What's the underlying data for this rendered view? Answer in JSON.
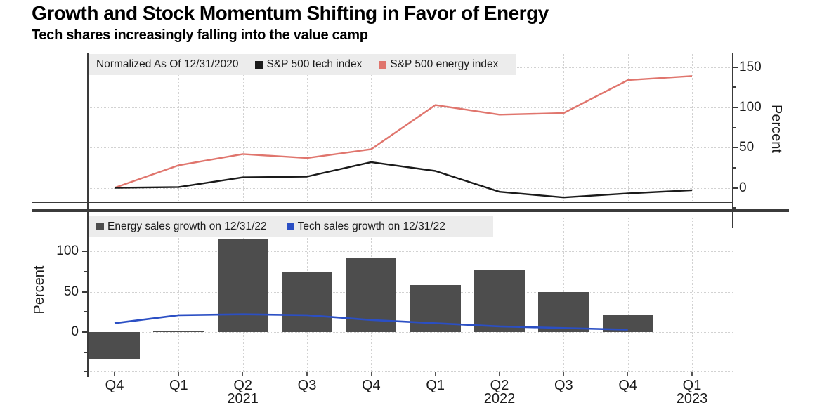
{
  "title": "Growth and Stock Momentum Shifting in Favor of Energy",
  "subtitle": "Tech shares increasingly falling into the value camp",
  "chart_data": [
    {
      "type": "line",
      "panel": "top",
      "note": "Normalized As Of 12/31/2020",
      "categories": [
        "Q4",
        "Q1",
        "Q2",
        "Q3",
        "Q4",
        "Q1",
        "Q2",
        "Q3",
        "Q4",
        "Q1"
      ],
      "series": [
        {
          "name": "S&P 500 tech index",
          "color": "#1a1a1a",
          "values": [
            0,
            1,
            13,
            14,
            32,
            21,
            -5,
            -12,
            -7,
            -3
          ]
        },
        {
          "name": "S&P 500 energy index",
          "color": "#e0756d",
          "values": [
            0,
            28,
            42,
            37,
            48,
            103,
            91,
            93,
            134,
            139
          ]
        }
      ],
      "ylabel": "Percent",
      "ylim": [
        -25,
        160
      ],
      "yticks": [
        0,
        50,
        100,
        150
      ],
      "grid": true,
      "legend_position": "top-left",
      "y_axis_side": "right"
    },
    {
      "type": "bar",
      "panel": "bottom",
      "categories": [
        "Q4",
        "Q1",
        "Q2",
        "Q3",
        "Q4",
        "Q1",
        "Q2",
        "Q3",
        "Q4",
        "Q1"
      ],
      "year_labels": [
        {
          "index": 2,
          "label": "2021"
        },
        {
          "index": 6,
          "label": "2022"
        },
        {
          "index": 9,
          "label": "2023"
        }
      ],
      "series": [
        {
          "name": "Energy sales growth on 12/31/22",
          "type": "bar",
          "color": "#4d4d4d",
          "values": [
            -33,
            2,
            115,
            75,
            91,
            58,
            77,
            50,
            21,
            null
          ]
        },
        {
          "name": "Tech sales growth on 12/31/22",
          "type": "line",
          "color": "#2b4fc4",
          "values": [
            11,
            21,
            22,
            21,
            15,
            11,
            7,
            5,
            3,
            null
          ]
        }
      ],
      "ylabel": "Percent",
      "ylim": [
        -50,
        142
      ],
      "yticks": [
        0,
        50,
        100
      ],
      "grid": true,
      "legend_position": "top-left",
      "y_axis_side": "left"
    }
  ]
}
